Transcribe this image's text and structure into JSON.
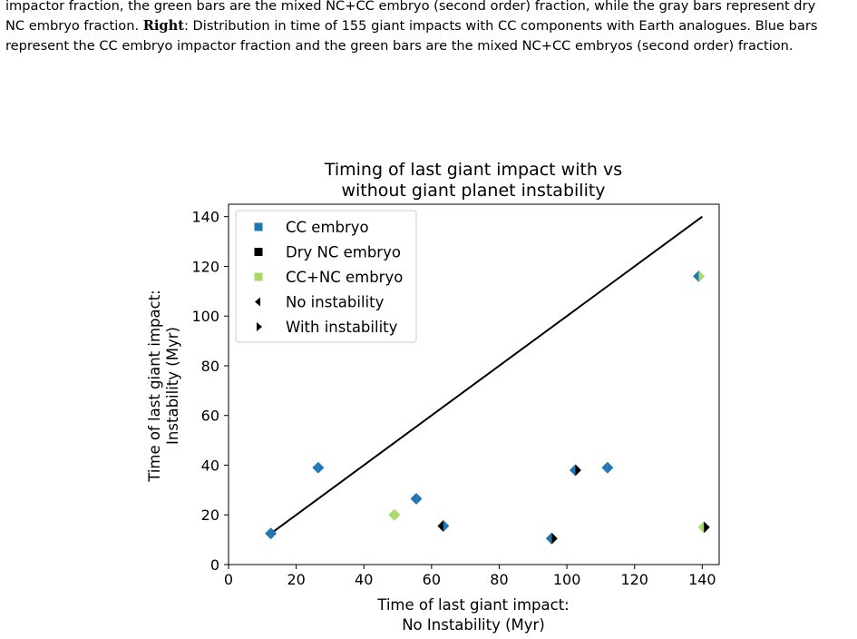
{
  "caption": {
    "line1": "impactor fraction, the green bars are the mixed NC+CC embryo (second order) fraction, while the gray bars represent dry",
    "line2_a": "NC embryo fraction. ",
    "line2_b": "Right",
    "line2_c": ": Distribution in time of 155 giant impacts with CC components with Earth analogues. Blue bars",
    "line3": "represent the CC embryo impactor fraction and the green bars are the mixed NC+CC embryos (second order) fraction."
  },
  "chart_data": {
    "type": "scatter",
    "title": [
      "Timing of last giant impact with vs",
      "without giant planet instability"
    ],
    "xlabel": [
      "Time of last giant impact:",
      "No Instability (Myr)"
    ],
    "ylabel": [
      "Time of last giant impact:",
      "Instability (Myr)"
    ],
    "xlim": [
      0,
      145
    ],
    "ylim": [
      0,
      145
    ],
    "xticks": [
      0,
      20,
      40,
      60,
      80,
      100,
      120,
      140
    ],
    "yticks": [
      0,
      20,
      40,
      60,
      80,
      100,
      120,
      140
    ],
    "grid": false,
    "legend_position": "top-left",
    "colors": {
      "cc": "#1f77b4",
      "dry": "#000000",
      "mixed": "#a6d96a",
      "line": "#000000"
    },
    "legend": [
      {
        "label": "CC embryo",
        "marker": "square",
        "color": "cc"
      },
      {
        "label": "Dry NC embryo",
        "marker": "square",
        "color": "dry"
      },
      {
        "label": "CC+NC embryo",
        "marker": "square",
        "color": "mixed"
      },
      {
        "label": "No instability",
        "marker": "tri-left",
        "color": "dry"
      },
      {
        "label": "With instability",
        "marker": "tri-right",
        "color": "dry"
      }
    ],
    "reference_line": {
      "x": [
        12,
        140
      ],
      "y": [
        12,
        140
      ]
    },
    "points": [
      {
        "x": 12.5,
        "y": 12.5,
        "no_instability": "cc",
        "with_instability": "cc"
      },
      {
        "x": 26.5,
        "y": 39,
        "no_instability": "cc",
        "with_instability": "cc"
      },
      {
        "x": 49,
        "y": 20,
        "no_instability": "mixed",
        "with_instability": "mixed"
      },
      {
        "x": 55.5,
        "y": 26.5,
        "no_instability": "cc",
        "with_instability": "cc"
      },
      {
        "x": 63.5,
        "y": 15.5,
        "no_instability": "dry",
        "with_instability": "cc"
      },
      {
        "x": 95.5,
        "y": 10.5,
        "no_instability": "cc",
        "with_instability": "dry"
      },
      {
        "x": 102.5,
        "y": 38,
        "no_instability": "cc",
        "with_instability": "dry"
      },
      {
        "x": 112,
        "y": 39,
        "no_instability": "cc",
        "with_instability": "cc"
      },
      {
        "x": 139,
        "y": 116,
        "no_instability": "cc",
        "with_instability": "mixed"
      },
      {
        "x": 140.5,
        "y": 15,
        "no_instability": "mixed",
        "with_instability": "dry"
      }
    ]
  }
}
